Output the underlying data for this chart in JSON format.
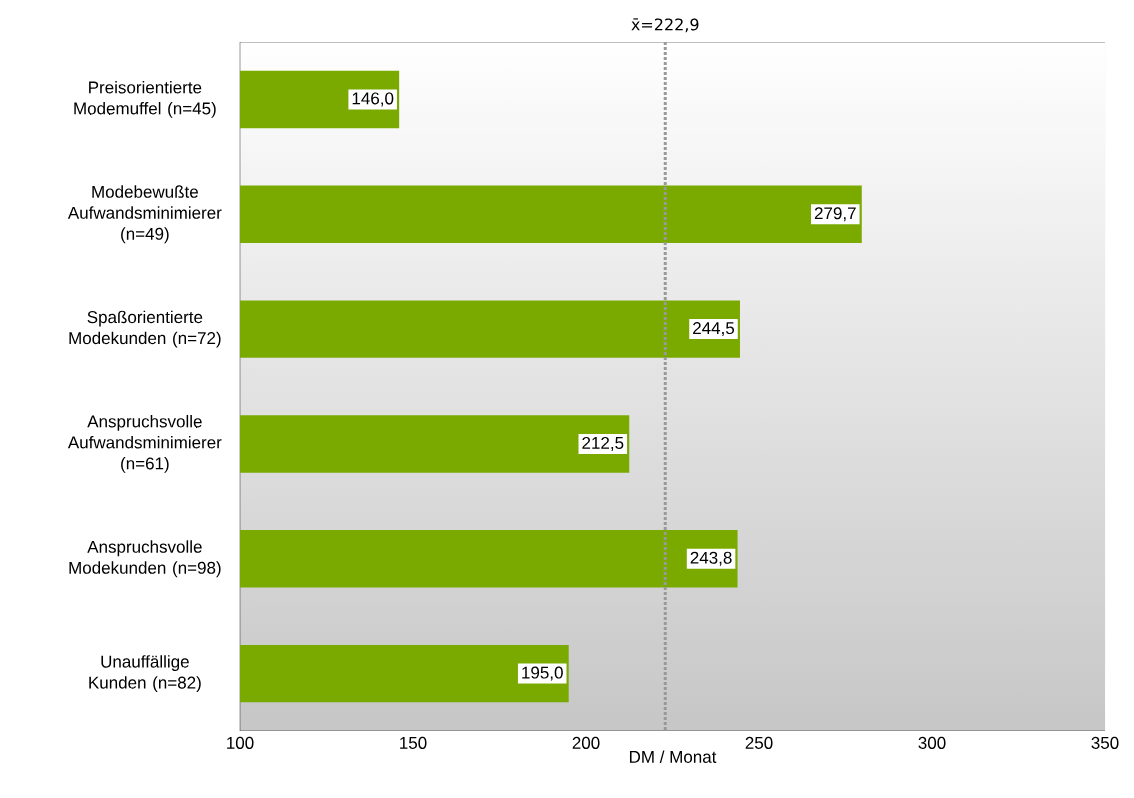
{
  "chart_data": {
    "type": "bar",
    "orientation": "horizontal",
    "categories": [
      "Preisorientierte Modemuffel (n=45)",
      "Modebewußte Aufwandsminimierer (n=49)",
      "Spaßorientierte Modekunden (n=72)",
      "Anspruchsvolle Aufwandsminimierer (n=61)",
      "Anspruchsvolle Modekunden (n=98)",
      "Unauffällige Kunden (n=82)"
    ],
    "values": [
      146.0,
      279.7,
      244.5,
      212.5,
      243.8,
      195.0
    ],
    "value_labels": [
      "146,0",
      "279,7",
      "244,5",
      "212,5",
      "243,8",
      "195,0"
    ],
    "color": "#7aaa00",
    "xlim": [
      100,
      350
    ],
    "xticks": [
      100,
      150,
      200,
      250,
      300,
      350
    ],
    "xlabel": "DM / Monat",
    "ref_lines": [
      {
        "axis": "x",
        "value": 222.9,
        "label": "x̄=222,9",
        "color": "#999999",
        "line_style": "dotted"
      }
    ]
  }
}
